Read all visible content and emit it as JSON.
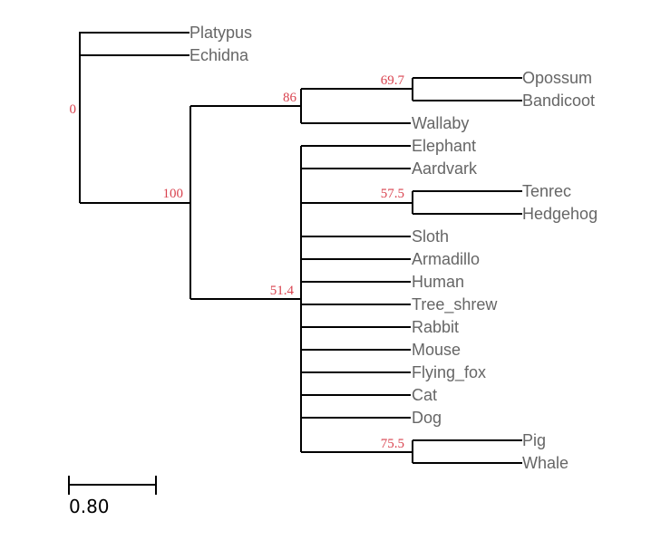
{
  "tree": {
    "leaves": [
      "Platypus",
      "Echidna",
      "Opossum",
      "Bandicoot",
      "Wallaby",
      "Elephant",
      "Aardvark",
      "Tenrec",
      "Hedgehog",
      "Sloth",
      "Armadillo",
      "Human",
      "Tree_shrew",
      "Rabbit",
      "Mouse",
      "Flying_fox",
      "Cat",
      "Dog",
      "Pig",
      "Whale"
    ],
    "support_values": {
      "root": "0",
      "theria": "100",
      "marsupials": "86",
      "opossum_bandicoot": "69.7",
      "placentals": "51.4",
      "tenrec_hedgehog": "57.5",
      "pig_whale": "75.5"
    },
    "colors": {
      "branch": "#000000",
      "leaf_label": "#666666",
      "support": "#d9434f"
    }
  },
  "scale": {
    "label": "0.80"
  }
}
